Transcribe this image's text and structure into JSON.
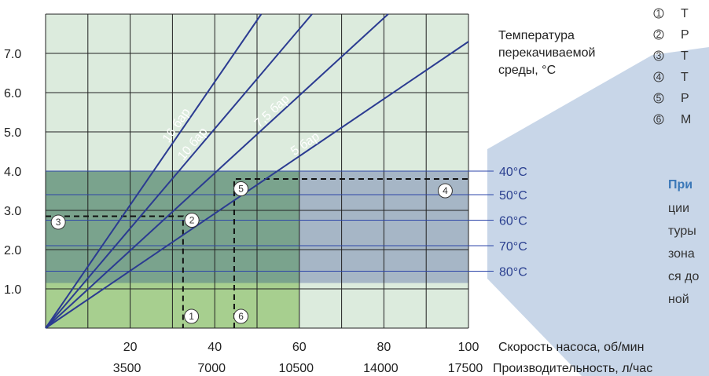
{
  "chart_data": {
    "type": "line",
    "xlim": [
      0,
      100
    ],
    "ylim": [
      0,
      8
    ],
    "y_ticks": [
      {
        "value": 7,
        "label": "7.0"
      },
      {
        "value": 6,
        "label": "6.0"
      },
      {
        "value": 5,
        "label": "5.0"
      },
      {
        "value": 4,
        "label": "4.0"
      },
      {
        "value": 3,
        "label": "3.0"
      },
      {
        "value": 2,
        "label": "2.0"
      },
      {
        "value": 1,
        "label": "1.0"
      }
    ],
    "x_ticks_speed": [
      {
        "value": 20,
        "label": "20"
      },
      {
        "value": 40,
        "label": "40"
      },
      {
        "value": 60,
        "label": "60"
      },
      {
        "value": 80,
        "label": "80"
      },
      {
        "value": 100,
        "label": "100"
      }
    ],
    "x_ticks_flow": [
      {
        "value": 20,
        "label": "3500"
      },
      {
        "value": 40,
        "label": "7000"
      },
      {
        "value": 60,
        "label": "10500"
      },
      {
        "value": 80,
        "label": "14000"
      },
      {
        "value": 100,
        "label": "17500"
      }
    ],
    "xlabel_speed": "Скорость насоса, об/мин",
    "xlabel_flow": "Производительность, л/час",
    "side_title": [
      "Температура",
      "перекачиваемой",
      "среды, °C"
    ],
    "series": [
      {
        "name": "16 бар",
        "x": [
          0,
          51
        ],
        "y": [
          0,
          8
        ]
      },
      {
        "name": "10 бар",
        "x": [
          0,
          63
        ],
        "y": [
          0,
          8
        ]
      },
      {
        "name": "7,5 бар",
        "x": [
          0,
          81
        ],
        "y": [
          0,
          8
        ]
      },
      {
        "name": "5 бар",
        "x": [
          0,
          100
        ],
        "y": [
          0,
          7.3
        ]
      }
    ],
    "zones": [
      {
        "x": [
          0,
          60
        ],
        "y": [
          1.15,
          4
        ],
        "color": "#7aa38d"
      },
      {
        "x": [
          60,
          100
        ],
        "y": [
          1.15,
          4
        ],
        "color": "#a6b6c6"
      },
      {
        "x": [
          0,
          60
        ],
        "y": [
          0,
          1.15
        ],
        "color": "#a7cf8f"
      }
    ],
    "temperature_lines": [
      {
        "label": "40°C",
        "y": 4
      },
      {
        "label": "50°C",
        "y": 3.4
      },
      {
        "label": "60°C",
        "y": 2.75
      },
      {
        "label": "70°C",
        "y": 2.1
      },
      {
        "label": "80°C",
        "y": 1.45
      }
    ],
    "markers": [
      {
        "label": "1",
        "x": 34.5,
        "y": 0.3
      },
      {
        "label": "2",
        "x": 34.6,
        "y": 2.75
      },
      {
        "label": "3",
        "x": 3,
        "y": 2.7
      },
      {
        "label": "4",
        "x": 94.5,
        "y": 3.5
      },
      {
        "label": "5",
        "x": 46.2,
        "y": 3.55
      },
      {
        "label": "6",
        "x": 46.2,
        "y": 0.3
      }
    ],
    "dashed_paths": [
      {
        "x": [
          0,
          32.5,
          32.5
        ],
        "y": [
          2.85,
          2.85,
          0
        ]
      },
      {
        "x": [
          44.6,
          44.6,
          100
        ],
        "y": [
          0,
          3.8,
          3.8
        ]
      }
    ]
  },
  "legend": {
    "items": [
      {
        "num": "1",
        "text": "Т"
      },
      {
        "num": "2",
        "text": "Р"
      },
      {
        "num": "3",
        "text": "Т"
      },
      {
        "num": "4",
        "text": "Т"
      },
      {
        "num": "5",
        "text": "Р"
      },
      {
        "num": "6",
        "text": "М"
      }
    ]
  },
  "note": {
    "title": "При",
    "lines": [
      "ции",
      "туры",
      "зона",
      "ся до",
      "ной"
    ]
  },
  "colors": {
    "background_grid": "#dcebdd",
    "grid_line": "#222222",
    "pressure_line": "#2b3b91",
    "temp_line": "#2d46a8",
    "callout": "#c8d6e8"
  }
}
